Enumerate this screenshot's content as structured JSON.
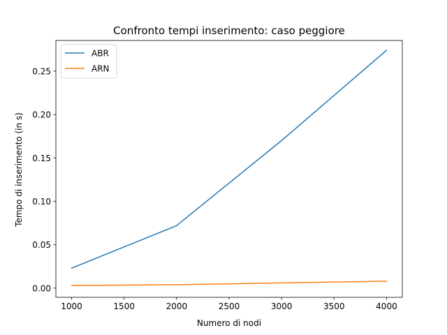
{
  "chart_data": {
    "type": "line",
    "title": "Confronto tempi inserimento: caso peggiore",
    "xlabel": "Numero di nodi",
    "ylabel": "Tempo di inserimento (in s)",
    "x": [
      1000,
      2000,
      3000,
      4000
    ],
    "xlim": [
      850,
      4150
    ],
    "ylim": [
      -0.0106,
      0.2853
    ],
    "xticks": [
      1000,
      1500,
      2000,
      2500,
      3000,
      3500,
      4000
    ],
    "xtick_labels": [
      "1000",
      "1500",
      "2000",
      "2500",
      "3000",
      "3500",
      "4000"
    ],
    "yticks": [
      0.0,
      0.05,
      0.1,
      0.15,
      0.2,
      0.25
    ],
    "ytick_labels": [
      "0.00",
      "0.05",
      "0.10",
      "0.15",
      "0.20",
      "0.25"
    ],
    "grid": false,
    "legend_position": "top-left",
    "series": [
      {
        "name": "ABR",
        "color": "#1f77b4",
        "values": [
          0.023,
          0.072,
          0.17,
          0.274
        ]
      },
      {
        "name": "ARN",
        "color": "#ff7f0e",
        "values": [
          0.003,
          0.004,
          0.006,
          0.008
        ]
      }
    ]
  }
}
